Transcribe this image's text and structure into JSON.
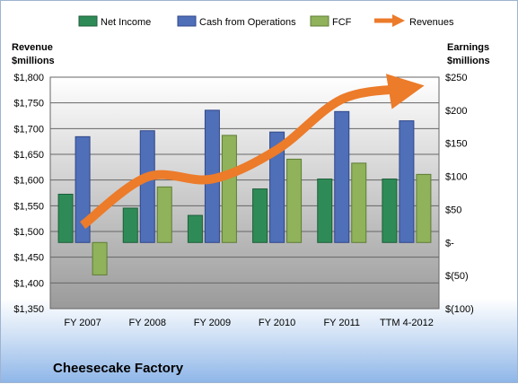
{
  "chart_data": {
    "type": "bar",
    "title": "Cheesecake Factory",
    "left_axis": {
      "label_line1": "Revenue",
      "label_line2": "$millions",
      "range": [
        1350,
        1800
      ],
      "ticks": [
        "$1,350",
        "$1,400",
        "$1,450",
        "$1,500",
        "$1,550",
        "$1,600",
        "$1,650",
        "$1,700",
        "$1,750",
        "$1,800"
      ],
      "tick_values": [
        1350,
        1400,
        1450,
        1500,
        1550,
        1600,
        1650,
        1700,
        1750,
        1800
      ]
    },
    "right_axis": {
      "label_line1": "Earnings",
      "label_line2": "$millions",
      "range": [
        -100,
        250
      ],
      "ticks": [
        "$(100)",
        "$(50)",
        "$-",
        "$50",
        "$100",
        "$150",
        "$200",
        "$250"
      ],
      "tick_values": [
        -100,
        -50,
        0,
        50,
        100,
        150,
        200,
        250
      ]
    },
    "categories": [
      "FY 2007",
      "FY 2008",
      "FY 2009",
      "FY 2010",
      "FY 2011",
      "TTM 4-2012"
    ],
    "series": [
      {
        "name": "Net Income",
        "axis": "right",
        "color": "#2e8b57",
        "values": [
          73,
          52,
          41,
          81,
          96,
          96
        ]
      },
      {
        "name": "Cash from Operations",
        "axis": "right",
        "color": "#4f6fb8",
        "values": [
          160,
          169,
          200,
          167,
          198,
          184
        ]
      },
      {
        "name": "FCF",
        "axis": "right",
        "color": "#8fb25a",
        "values": [
          -49,
          84,
          162,
          126,
          120,
          103
        ]
      },
      {
        "name": "Revenues",
        "axis": "left",
        "color": "#ec7b2a",
        "style": "arrow-line",
        "values": [
          1512,
          1606,
          1602,
          1659,
          1757,
          1778
        ]
      }
    ],
    "legend_position": "top",
    "grid": true,
    "colors": {
      "plot_bg_top": "#ffffff",
      "plot_bg_bottom": "#9a9a9a",
      "grid": "#666666"
    }
  }
}
